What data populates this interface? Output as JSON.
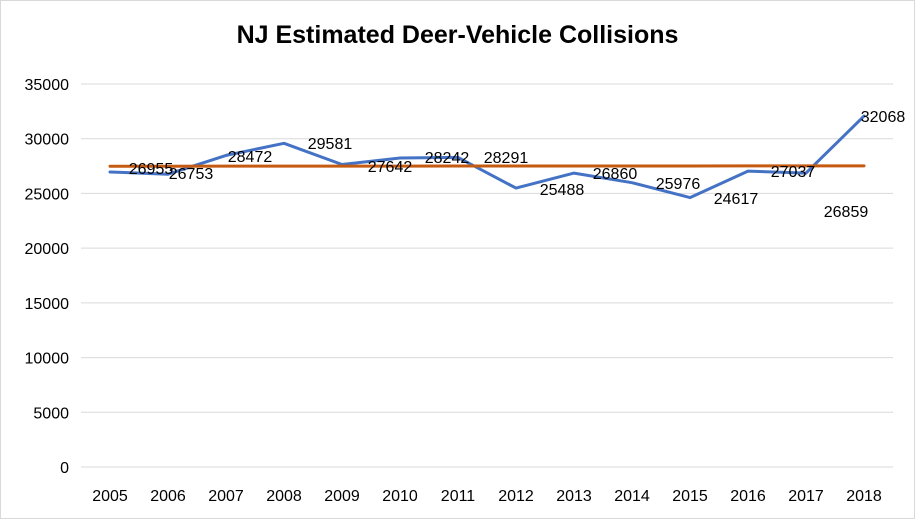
{
  "chart_data": {
    "type": "line",
    "title": "NJ Estimated Deer-Vehicle Collisions",
    "xlabel": "",
    "ylabel": "",
    "categories": [
      "2005",
      "2006",
      "2007",
      "2008",
      "2009",
      "2010",
      "2011",
      "2012",
      "2013",
      "2014",
      "2015",
      "2016",
      "2017",
      "2018"
    ],
    "series": [
      {
        "color": "#4472c4",
        "values": [
          26955,
          26753,
          28472,
          29581,
          27642,
          28242,
          28291,
          25488,
          26860,
          25976,
          24617,
          27037,
          26859,
          32068
        ],
        "data_labels": [
          "26955",
          "26753",
          "28472",
          "29581",
          "27642",
          "28242",
          "28291",
          "25488",
          "26860",
          "25976",
          "24617",
          "27037",
          "26859",
          "32068"
        ]
      },
      {
        "color": "#c55a11",
        "values": [
          27490,
          27492,
          27494,
          27496,
          27498,
          27500,
          27502,
          27504,
          27506,
          27508,
          27510,
          27512,
          27514,
          27516
        ]
      }
    ],
    "ylim": [
      0,
      35000
    ],
    "yticks": [
      "0",
      "5000",
      "10000",
      "15000",
      "20000",
      "25000",
      "30000",
      "35000"
    ],
    "grid": true,
    "legend": "none"
  }
}
